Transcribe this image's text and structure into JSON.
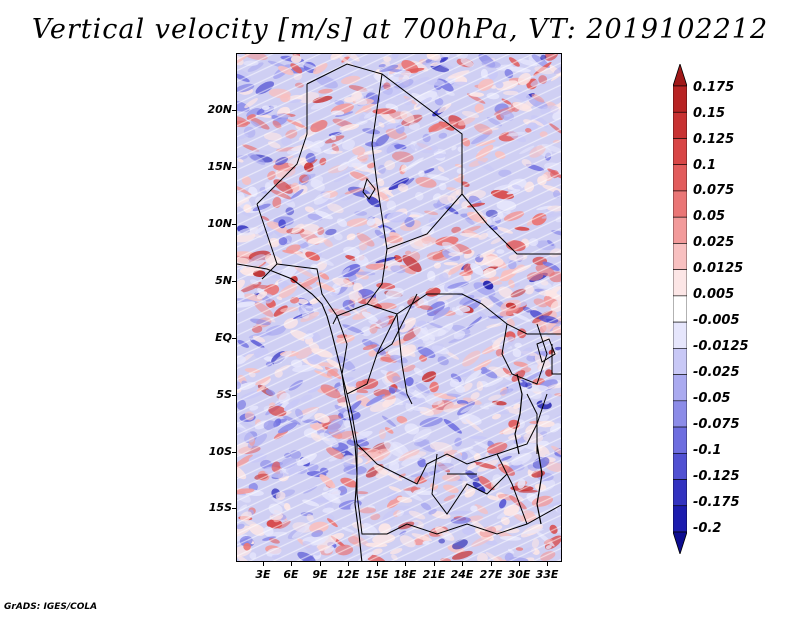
{
  "title": "Vertical velocity [m/s] at 700hPa, VT: 2019102212",
  "credit": "GrADS: IGES/COLA",
  "map": {
    "lat_labels": [
      "20N",
      "15N",
      "10N",
      "5N",
      "EQ",
      "5S",
      "10S",
      "15S"
    ],
    "lon_labels": [
      "3E",
      "6E",
      "9E",
      "12E",
      "15E",
      "18E",
      "21E",
      "24E",
      "27E",
      "30E",
      "33E"
    ]
  },
  "colorbar": {
    "labels": [
      "0.175",
      "0.15",
      "0.125",
      "0.1",
      "0.075",
      "0.05",
      "0.025",
      "0.0125",
      "0.005",
      "-0.005",
      "-0.0125",
      "-0.025",
      "-0.05",
      "-0.075",
      "-0.1",
      "-0.125",
      "-0.175",
      "-0.2"
    ],
    "colors": [
      "#a01818",
      "#b82424",
      "#c83232",
      "#d84646",
      "#e25c5c",
      "#ea7676",
      "#f29a9a",
      "#f8c0c0",
      "#fce6e6",
      "#ffffff",
      "#e6e6fc",
      "#c8c8f6",
      "#aaaaf0",
      "#8c8ce8",
      "#6e6ee0",
      "#5050d2",
      "#3232c0",
      "#1c1cae",
      "#0c0c90"
    ]
  }
}
